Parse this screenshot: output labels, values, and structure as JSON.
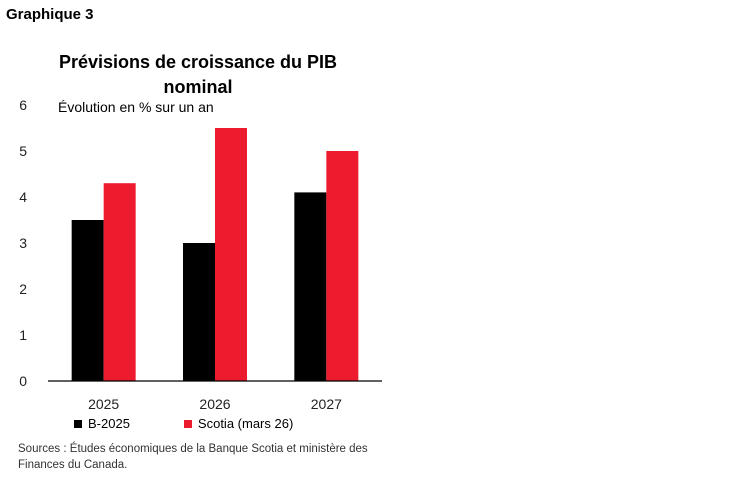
{
  "figure_label": "Graphique 3",
  "chart_data": {
    "type": "bar",
    "title": "Prévisions de croissance du PIB nominal",
    "subtitle": "Évolution en % sur un an",
    "categories": [
      "2025",
      "2026",
      "2027"
    ],
    "series": [
      {
        "name": "B-2025",
        "color": "#000000",
        "values": [
          3.5,
          3.0,
          4.1
        ]
      },
      {
        "name": "Scotia (mars 26)",
        "color": "#ec1c2e",
        "values": [
          4.3,
          5.5,
          5.0
        ]
      }
    ],
    "ylim": [
      0,
      6
    ],
    "yticks": [
      "0",
      "1",
      "2",
      "3",
      "4",
      "5",
      "6"
    ],
    "grid": false,
    "legend_position": "bottom"
  },
  "sources": "Sources : Études économiques de la Banque Scotia et ministère des Finances du Canada."
}
